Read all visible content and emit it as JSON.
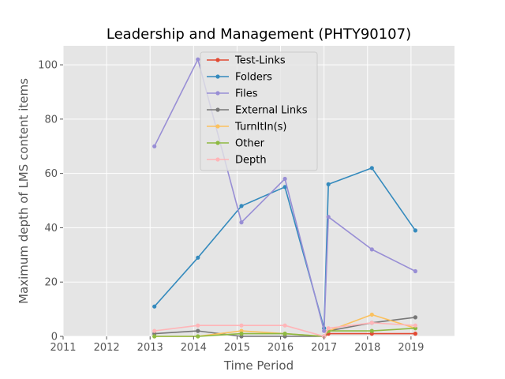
{
  "chart_data": {
    "type": "line",
    "title": "Leadership and Management (PHTY90107)",
    "xlabel": "Time Period",
    "ylabel": "Maximum depth of LMS content items",
    "xlim": [
      2011,
      2020
    ],
    "ylim": [
      0,
      107
    ],
    "xticks": [
      "2011",
      "2012",
      "2013",
      "2014",
      "2015",
      "2016",
      "2017",
      "2018",
      "2019"
    ],
    "yticks": [
      "0",
      "20",
      "40",
      "60",
      "80",
      "100"
    ],
    "grid": true,
    "legend_position": "upper-center",
    "x": [
      2013.1,
      2014.1,
      2015.1,
      2016.1,
      2017.0,
      2017.1,
      2018.1,
      2019.1
    ],
    "series": [
      {
        "name": "Test-Links",
        "color": "#E24A33",
        "values": [
          null,
          null,
          null,
          null,
          0,
          1,
          1,
          1
        ]
      },
      {
        "name": "Folders",
        "color": "#348ABD",
        "values": [
          11,
          29,
          48,
          55,
          3,
          56,
          62,
          39
        ]
      },
      {
        "name": "Files",
        "color": "#988ED5",
        "values": [
          70,
          102,
          42,
          58,
          2,
          44,
          32,
          24
        ]
      },
      {
        "name": "External Links",
        "color": "#777777",
        "values": [
          1,
          2,
          0,
          0,
          0,
          2,
          5,
          7
        ]
      },
      {
        "name": "TurnItIn(s)",
        "color": "#FBC15E",
        "values": [
          0,
          0,
          2,
          1,
          0,
          2,
          8,
          3
        ]
      },
      {
        "name": "Other",
        "color": "#8EBA42",
        "values": [
          0,
          0,
          1,
          1,
          0,
          2,
          2,
          3
        ]
      },
      {
        "name": "Depth",
        "color": "#FFB5B8",
        "values": [
          2,
          4,
          4,
          4,
          0,
          3,
          5,
          4
        ]
      }
    ]
  }
}
